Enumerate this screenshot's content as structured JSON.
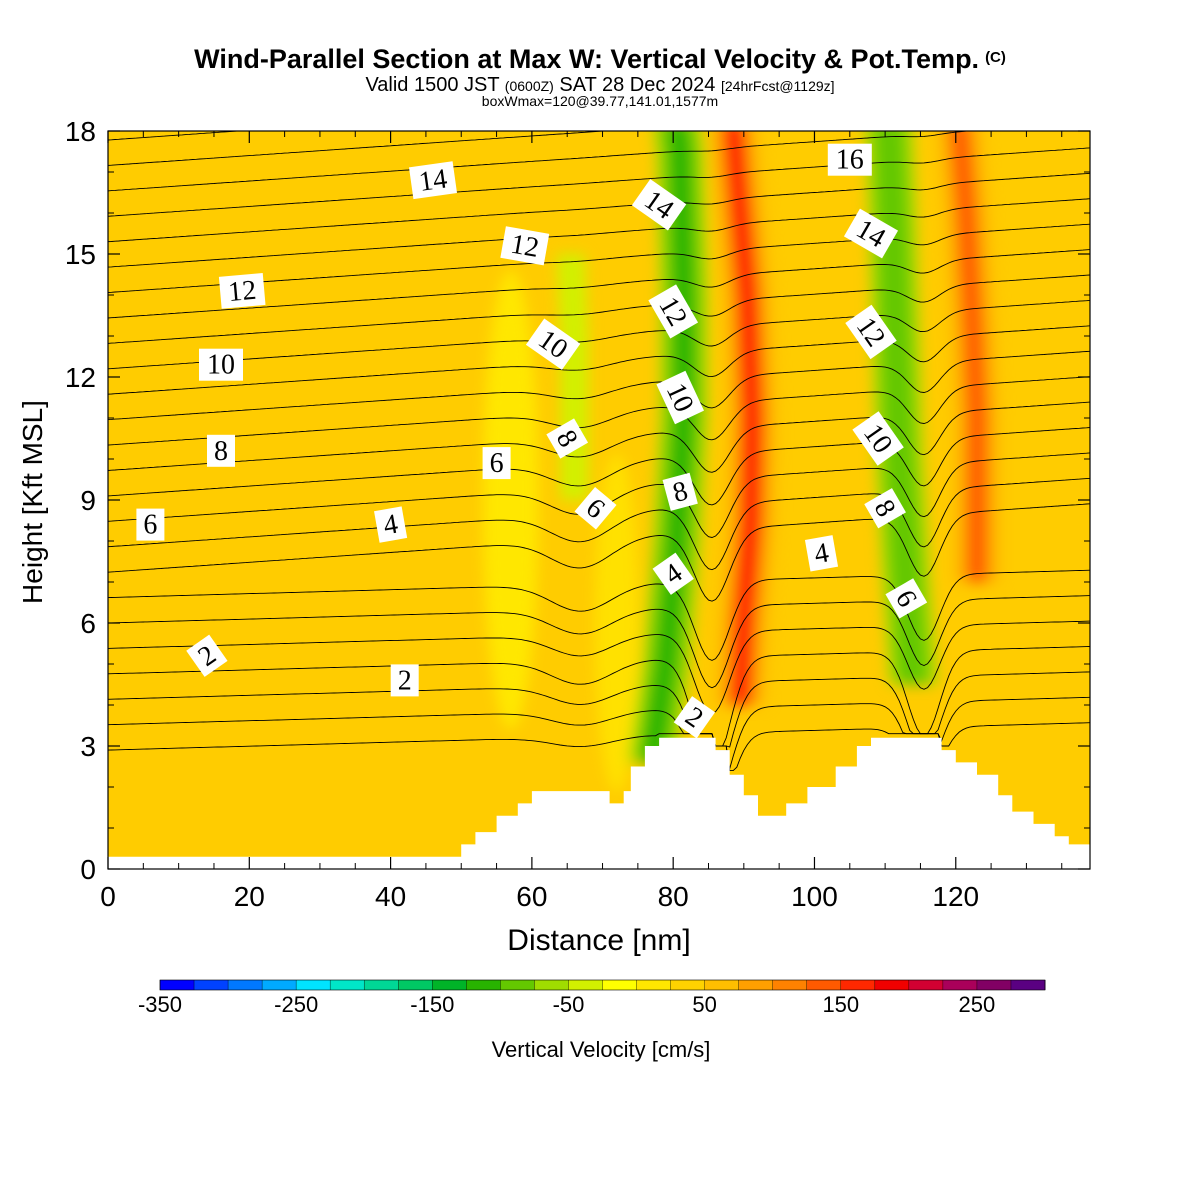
{
  "header": {
    "title": "Wind-Parallel Section at Max W: Vertical Velocity & Pot.Temp.",
    "copyright_mark": "(C)",
    "valid_prefix": "Valid 1500 JST",
    "valid_utc": "(0600Z)",
    "valid_date": "SAT 28 Dec 2024",
    "forecast_info": "[24hrFcst@1129z]",
    "box_info": "boxWmax=120@39.77,141.01,1577m"
  },
  "chart_data": {
    "type": "heatmap",
    "xlabel": "Distance [nm]",
    "ylabel": "Height [Kft MSL]",
    "xlim": [
      0,
      139
    ],
    "ylim": [
      0,
      18
    ],
    "x_ticks": [
      0,
      20,
      40,
      60,
      80,
      100,
      120
    ],
    "y_ticks": [
      0,
      3,
      6,
      9,
      12,
      15,
      18
    ],
    "colorbar": {
      "label": "Vertical Velocity [cm/s]",
      "range": [
        -350,
        275
      ],
      "step": 25,
      "tick_labels": [
        -350,
        -250,
        -150,
        -50,
        50,
        150,
        250
      ],
      "colors": [
        "#0000ff",
        "#0042ff",
        "#0078ff",
        "#00aaff",
        "#00e4ff",
        "#00e6c8",
        "#00d796",
        "#00c864",
        "#00b428",
        "#28b400",
        "#64c800",
        "#a0dc00",
        "#d2f000",
        "#ffff00",
        "#ffe600",
        "#ffd200",
        "#ffbe00",
        "#ffa000",
        "#ff8200",
        "#ff5a00",
        "#ff2800",
        "#f00000",
        "#d20032",
        "#aa005a",
        "#820064",
        "#5a0082"
      ]
    },
    "vertical_velocity_features": [
      {
        "kind": "downdraft",
        "x": 82.5,
        "y": 11,
        "value": -125
      },
      {
        "kind": "updraft",
        "x": 91,
        "y": 10.5,
        "value": 150
      },
      {
        "kind": "downdraft",
        "x": 111.5,
        "y": 11,
        "value": -100
      },
      {
        "kind": "updraft",
        "x": 122,
        "y": 10,
        "value": 125
      },
      {
        "kind": "downdraft",
        "x": 64.5,
        "y": 12.5,
        "value": -50
      }
    ],
    "terrain_profile": {
      "x": [
        0,
        48,
        50,
        52,
        55,
        58,
        60,
        69,
        71,
        73,
        74,
        76,
        78,
        84,
        86,
        88,
        90,
        92,
        96,
        99,
        103,
        106,
        108,
        112,
        116,
        118,
        120,
        123,
        126,
        128,
        131,
        134,
        136,
        139
      ],
      "y": [
        0.3,
        0.3,
        0.6,
        0.9,
        1.3,
        1.6,
        1.9,
        1.9,
        1.6,
        1.9,
        2.5,
        3.0,
        3.2,
        3.2,
        2.9,
        2.3,
        1.8,
        1.3,
        1.6,
        2.0,
        2.5,
        3.0,
        3.2,
        3.2,
        3.2,
        2.9,
        2.6,
        2.3,
        1.8,
        1.4,
        1.1,
        0.8,
        0.6,
        0.6
      ]
    },
    "theta_contour_labels": [
      "2",
      "4",
      "6",
      "8",
      "10",
      "12",
      "14",
      "16"
    ]
  }
}
